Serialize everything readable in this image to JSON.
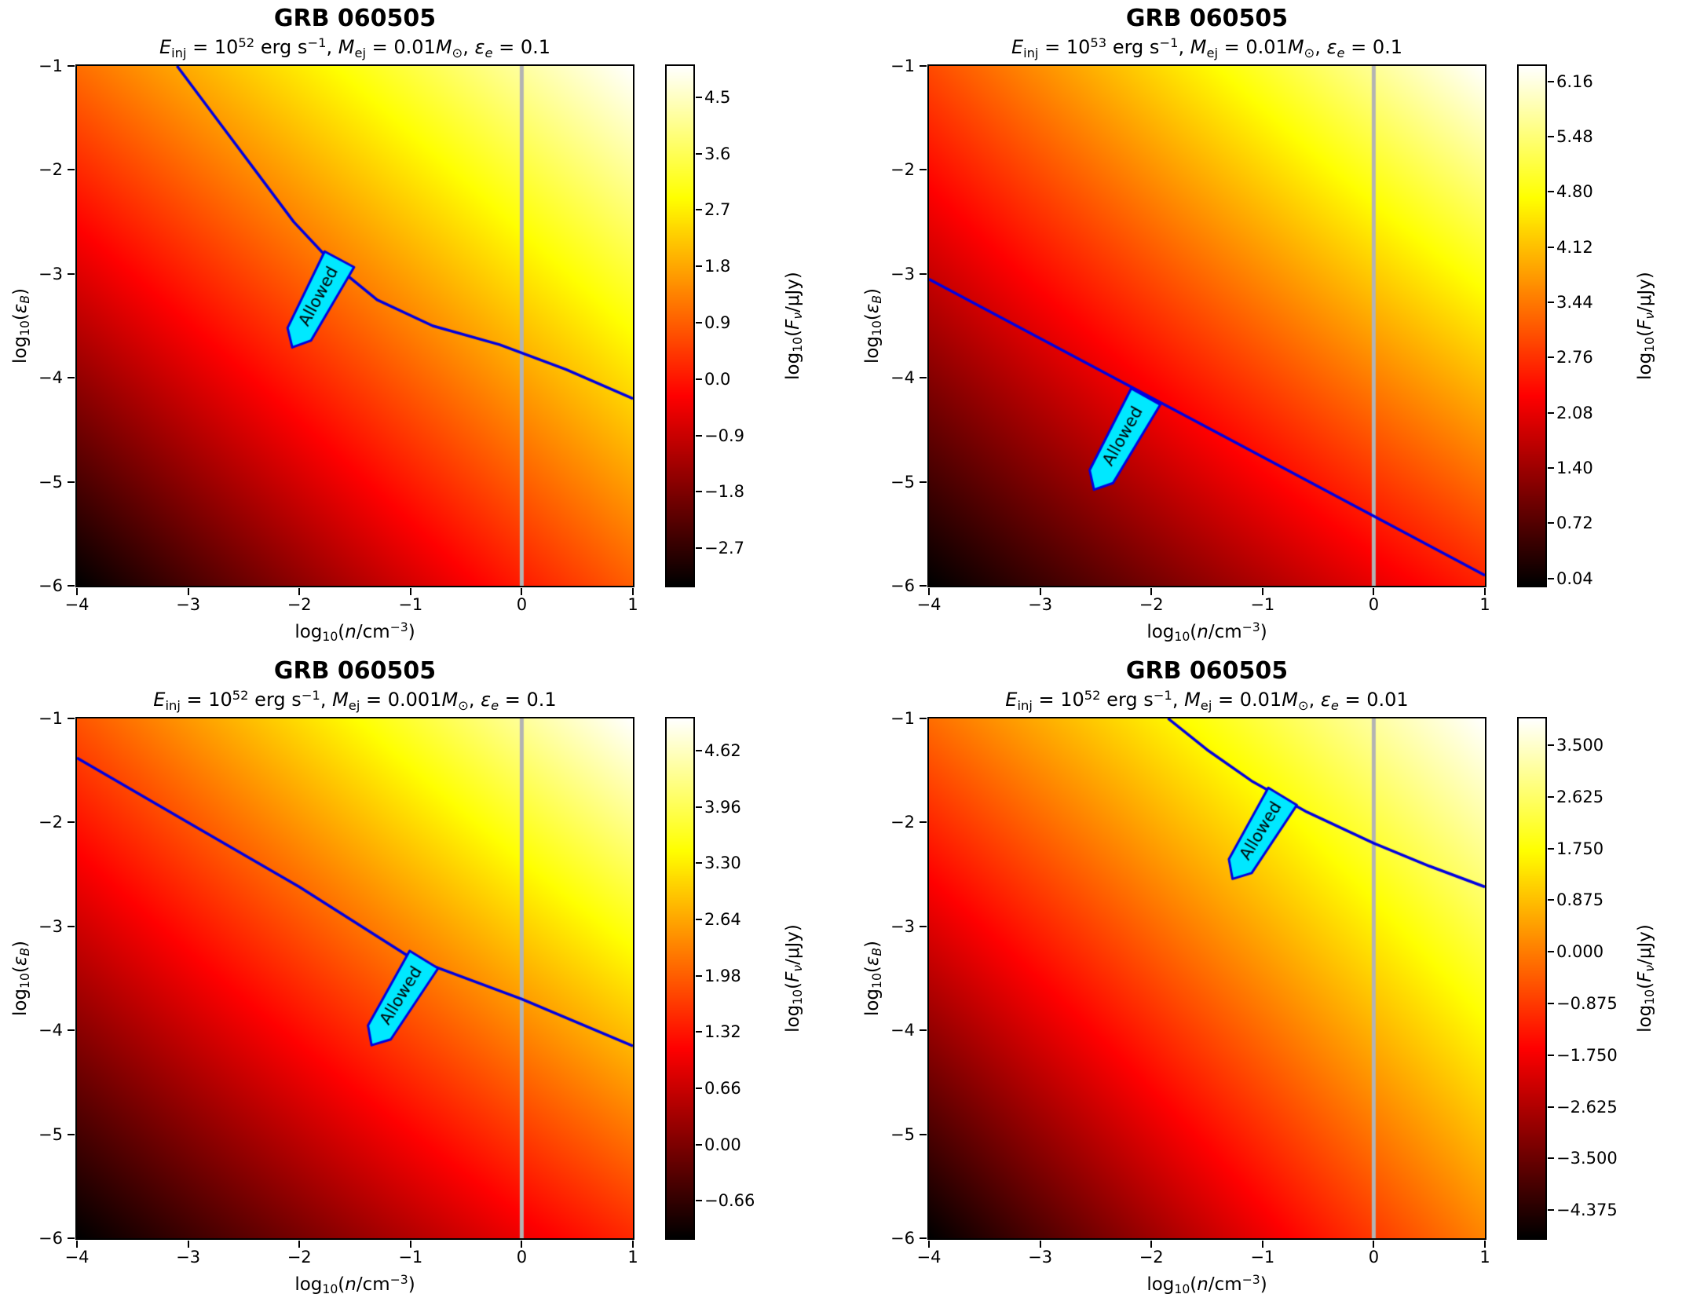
{
  "figure": {
    "background": "#ffffff",
    "rows": 2,
    "cols": 2
  },
  "rich": {
    "xlabel_segments": [
      {
        "t": "log"
      },
      {
        "t": "10",
        "sub": 1
      },
      {
        "t": "("
      },
      {
        "t": "n",
        "i": 1
      },
      {
        "t": "/cm"
      },
      {
        "t": "−3",
        "sup": 1
      },
      {
        "t": ")"
      }
    ],
    "ylabel_segments": [
      {
        "t": "log"
      },
      {
        "t": "10",
        "sub": 1
      },
      {
        "t": "("
      },
      {
        "t": "ε",
        "i": 1
      },
      {
        "t": "B",
        "sub": 1,
        "i": 1
      },
      {
        "t": ")"
      }
    ],
    "cbar_label_segments": [
      {
        "t": "log"
      },
      {
        "t": "10",
        "sub": 1
      },
      {
        "t": "("
      },
      {
        "t": "F",
        "i": 1
      },
      {
        "t": "ν",
        "sub": 1,
        "i": 1
      },
      {
        "t": "/μJy)"
      }
    ]
  },
  "chart_data": [
    {
      "type": "heatmap",
      "title": "GRB 060505",
      "subtitle": "Einj = 10⁵² erg s⁻¹, Mej = 0.01M⊙, εe = 0.1",
      "subtitle_segments": [
        {
          "t": "E",
          "i": 1
        },
        {
          "t": "inj",
          "sub": 1
        },
        {
          "t": " = 10"
        },
        {
          "t": "52",
          "sup": 1
        },
        {
          "t": " erg s"
        },
        {
          "t": "−1",
          "sup": 1
        },
        {
          "t": ", "
        },
        {
          "t": "M",
          "i": 1
        },
        {
          "t": "ej",
          "sub": 1
        },
        {
          "t": " = 0.01"
        },
        {
          "t": "M",
          "i": 1
        },
        {
          "t": "⊙",
          "sub": 1
        },
        {
          "t": ", "
        },
        {
          "t": "ε",
          "i": 1
        },
        {
          "t": "e",
          "sub": 1,
          "i": 1
        },
        {
          "t": " = 0.1"
        }
      ],
      "xlabel": "log10(n/cm⁻³)",
      "ylabel": "log10(εB)",
      "colorbar_label": "log10(Fν/μJy)",
      "xlim": [
        -4,
        1
      ],
      "ylim": [
        -6,
        -1
      ],
      "x_ticks": [
        -4,
        -3,
        -2,
        -1,
        0,
        1
      ],
      "x_tick_labels": [
        "−4",
        "−3",
        "−2",
        "−1",
        "0",
        "1"
      ],
      "y_ticks": [
        -1,
        -2,
        -3,
        -4,
        -5,
        -6
      ],
      "y_tick_labels": [
        "−1",
        "−2",
        "−3",
        "−4",
        "−5",
        "−6"
      ],
      "colormap": "hot",
      "vmin": -3.3,
      "vmax": 5.0,
      "corner_values": {
        "bl": -3.3,
        "br": 0.9,
        "tl": 1.1,
        "tr": 5.0
      },
      "colorbar_ticks": [
        {
          "value": 4.5,
          "label": "4.5"
        },
        {
          "value": 3.6,
          "label": "3.6"
        },
        {
          "value": 2.7,
          "label": "2.7"
        },
        {
          "value": 1.8,
          "label": "1.8"
        },
        {
          "value": 0.9,
          "label": "0.9"
        },
        {
          "value": 0.0,
          "label": "0.0"
        },
        {
          "value": -0.9,
          "label": "−0.9"
        },
        {
          "value": -1.8,
          "label": "−1.8"
        },
        {
          "value": -2.7,
          "label": "−2.7"
        }
      ],
      "vline_x": 0,
      "vline_color": "#b3b3b3",
      "contour": {
        "color": "#0000e0",
        "points": [
          [
            -3.1,
            -1.0
          ],
          [
            -2.75,
            -1.5
          ],
          [
            -2.4,
            -2.0
          ],
          [
            -2.05,
            -2.5
          ],
          [
            -1.7,
            -2.9
          ],
          [
            -1.3,
            -3.25
          ],
          [
            -0.8,
            -3.5
          ],
          [
            -0.2,
            -3.68
          ],
          [
            0.4,
            -3.92
          ],
          [
            1.0,
            -4.2
          ]
        ]
      },
      "allowed_region": {
        "label": "Allowed",
        "fill": "#00e8ff",
        "edge": "#0000e0",
        "top": [
          -1.64,
          -2.86
        ],
        "bottom": [
          -2.0,
          -3.58
        ],
        "half_width": 0.15
      }
    },
    {
      "type": "heatmap",
      "title": "GRB 060505",
      "subtitle": "Einj = 10⁵³ erg s⁻¹, Mej = 0.01M⊙, εe = 0.1",
      "subtitle_segments": [
        {
          "t": "E",
          "i": 1
        },
        {
          "t": "inj",
          "sub": 1
        },
        {
          "t": " = 10"
        },
        {
          "t": "53",
          "sup": 1
        },
        {
          "t": " erg s"
        },
        {
          "t": "−1",
          "sup": 1
        },
        {
          "t": ", "
        },
        {
          "t": "M",
          "i": 1
        },
        {
          "t": "ej",
          "sub": 1
        },
        {
          "t": " = 0.01"
        },
        {
          "t": "M",
          "i": 1
        },
        {
          "t": "⊙",
          "sub": 1
        },
        {
          "t": ", "
        },
        {
          "t": "ε",
          "i": 1
        },
        {
          "t": "e",
          "sub": 1,
          "i": 1
        },
        {
          "t": " = 0.1"
        }
      ],
      "xlabel": "log10(n/cm⁻³)",
      "ylabel": "log10(εB)",
      "colorbar_label": "log10(Fν/μJy)",
      "xlim": [
        -4,
        1
      ],
      "ylim": [
        -6,
        -1
      ],
      "x_ticks": [
        -4,
        -3,
        -2,
        -1,
        0,
        1
      ],
      "x_tick_labels": [
        "−4",
        "−3",
        "−2",
        "−1",
        "0",
        "1"
      ],
      "y_ticks": [
        -1,
        -2,
        -3,
        -4,
        -5,
        -6
      ],
      "y_tick_labels": [
        "−1",
        "−2",
        "−3",
        "−4",
        "−5",
        "−6"
      ],
      "colormap": "hot",
      "vmin": -0.05,
      "vmax": 6.35,
      "corner_values": {
        "bl": -0.05,
        "br": 2.6,
        "tl": 3.0,
        "tr": 6.35
      },
      "colorbar_ticks": [
        {
          "value": 6.16,
          "label": "6.16"
        },
        {
          "value": 5.48,
          "label": "5.48"
        },
        {
          "value": 4.8,
          "label": "4.80"
        },
        {
          "value": 4.12,
          "label": "4.12"
        },
        {
          "value": 3.44,
          "label": "3.44"
        },
        {
          "value": 2.76,
          "label": "2.76"
        },
        {
          "value": 2.08,
          "label": "2.08"
        },
        {
          "value": 1.4,
          "label": "1.40"
        },
        {
          "value": 0.72,
          "label": "0.72"
        },
        {
          "value": 0.04,
          "label": "0.04"
        }
      ],
      "vline_x": 0,
      "vline_color": "#b3b3b3",
      "contour": {
        "color": "#0000e0",
        "points": [
          [
            -4.0,
            -3.05
          ],
          [
            1.0,
            -5.9
          ]
        ]
      },
      "allowed_region": {
        "label": "Allowed",
        "fill": "#00e8ff",
        "edge": "#0000e0",
        "top": [
          -2.05,
          -4.18
        ],
        "bottom": [
          -2.45,
          -4.95
        ],
        "half_width": 0.15
      }
    },
    {
      "type": "heatmap",
      "title": "GRB 060505",
      "subtitle": "Einj = 10⁵² erg s⁻¹, Mej = 0.001M⊙, εe = 0.1",
      "subtitle_segments": [
        {
          "t": "E",
          "i": 1
        },
        {
          "t": "inj",
          "sub": 1
        },
        {
          "t": " = 10"
        },
        {
          "t": "52",
          "sup": 1
        },
        {
          "t": " erg s"
        },
        {
          "t": "−1",
          "sup": 1
        },
        {
          "t": ", "
        },
        {
          "t": "M",
          "i": 1
        },
        {
          "t": "ej",
          "sub": 1
        },
        {
          "t": " = 0.001"
        },
        {
          "t": "M",
          "i": 1
        },
        {
          "t": "⊙",
          "sub": 1
        },
        {
          "t": ", "
        },
        {
          "t": "ε",
          "i": 1
        },
        {
          "t": "e",
          "sub": 1,
          "i": 1
        },
        {
          "t": " = 0.1"
        }
      ],
      "xlabel": "log10(n/cm⁻³)",
      "ylabel": "log10(εB)",
      "colorbar_label": "log10(Fν/μJy)",
      "xlim": [
        -4,
        1
      ],
      "ylim": [
        -6,
        -1
      ],
      "x_ticks": [
        -4,
        -3,
        -2,
        -1,
        0,
        1
      ],
      "x_tick_labels": [
        "−4",
        "−3",
        "−2",
        "−1",
        "0",
        "1"
      ],
      "y_ticks": [
        -1,
        -2,
        -3,
        -4,
        -5,
        -6
      ],
      "y_tick_labels": [
        "−1",
        "−2",
        "−3",
        "−4",
        "−5",
        "−6"
      ],
      "colormap": "hot",
      "vmin": -1.1,
      "vmax": 5.0,
      "corner_values": {
        "bl": -1.1,
        "br": 1.5,
        "tl": 1.9,
        "tr": 5.0
      },
      "colorbar_ticks": [
        {
          "value": 4.62,
          "label": "4.62"
        },
        {
          "value": 3.96,
          "label": "3.96"
        },
        {
          "value": 3.3,
          "label": "3.30"
        },
        {
          "value": 2.64,
          "label": "2.64"
        },
        {
          "value": 1.98,
          "label": "1.98"
        },
        {
          "value": 1.32,
          "label": "1.32"
        },
        {
          "value": 0.66,
          "label": "0.66"
        },
        {
          "value": 0.0,
          "label": "0.00"
        },
        {
          "value": -0.66,
          "label": "−0.66"
        }
      ],
      "vline_x": 0,
      "vline_color": "#b3b3b3",
      "contour": {
        "color": "#0000e0",
        "points": [
          [
            -4.0,
            -1.38
          ],
          [
            -3.0,
            -2.0
          ],
          [
            -2.0,
            -2.62
          ],
          [
            -1.0,
            -3.3
          ],
          [
            0.0,
            -3.7
          ],
          [
            1.0,
            -4.15
          ]
        ]
      },
      "allowed_region": {
        "label": "Allowed",
        "fill": "#00e8ff",
        "edge": "#0000e0",
        "top": [
          -0.88,
          -3.32
        ],
        "bottom": [
          -1.28,
          -4.02
        ],
        "half_width": 0.15
      }
    },
    {
      "type": "heatmap",
      "title": "GRB 060505",
      "subtitle": "Einj = 10⁵² erg s⁻¹, Mej = 0.01M⊙, εe = 0.01",
      "subtitle_segments": [
        {
          "t": "E",
          "i": 1
        },
        {
          "t": "inj",
          "sub": 1
        },
        {
          "t": " = 10"
        },
        {
          "t": "52",
          "sup": 1
        },
        {
          "t": " erg s"
        },
        {
          "t": "−1",
          "sup": 1
        },
        {
          "t": ", "
        },
        {
          "t": "M",
          "i": 1
        },
        {
          "t": "ej",
          "sub": 1
        },
        {
          "t": " = 0.01"
        },
        {
          "t": "M",
          "i": 1
        },
        {
          "t": "⊙",
          "sub": 1
        },
        {
          "t": ", "
        },
        {
          "t": "ε",
          "i": 1
        },
        {
          "t": "e",
          "sub": 1,
          "i": 1
        },
        {
          "t": " = 0.01"
        }
      ],
      "xlabel": "log10(n/cm⁻³)",
      "ylabel": "log10(εB)",
      "colorbar_label": "log10(Fν/μJy)",
      "xlim": [
        -4,
        1
      ],
      "ylim": [
        -6,
        -1
      ],
      "x_ticks": [
        -4,
        -3,
        -2,
        -1,
        0,
        1
      ],
      "x_tick_labels": [
        "−4",
        "−3",
        "−2",
        "−1",
        "0",
        "1"
      ],
      "y_ticks": [
        -1,
        -2,
        -3,
        -4,
        -5,
        -6
      ],
      "y_tick_labels": [
        "−1",
        "−2",
        "−3",
        "−4",
        "−5",
        "−6"
      ],
      "colormap": "hot",
      "vmin": -4.85,
      "vmax": 3.95,
      "corner_values": {
        "bl": -4.85,
        "br": 0.1,
        "tl": -0.2,
        "tr": 3.95
      },
      "colorbar_ticks": [
        {
          "value": 3.5,
          "label": "3.500"
        },
        {
          "value": 2.625,
          "label": "2.625"
        },
        {
          "value": 1.75,
          "label": "1.750"
        },
        {
          "value": 0.875,
          "label": "0.875"
        },
        {
          "value": 0.0,
          "label": "0.000"
        },
        {
          "value": -0.875,
          "label": "−0.875"
        },
        {
          "value": -1.75,
          "label": "−1.750"
        },
        {
          "value": -2.625,
          "label": "−2.625"
        },
        {
          "value": -3.5,
          "label": "−3.500"
        },
        {
          "value": -4.375,
          "label": "−4.375"
        }
      ],
      "vline_x": 0,
      "vline_color": "#b3b3b3",
      "contour": {
        "color": "#0000e0",
        "points": [
          [
            -1.85,
            -1.0
          ],
          [
            -1.5,
            -1.3
          ],
          [
            -1.1,
            -1.6
          ],
          [
            -0.6,
            -1.9
          ],
          [
            0.0,
            -2.2
          ],
          [
            0.5,
            -2.42
          ],
          [
            1.0,
            -2.62
          ]
        ]
      },
      "allowed_region": {
        "label": "Allowed",
        "fill": "#00e8ff",
        "edge": "#0000e0",
        "top": [
          -0.82,
          -1.75
        ],
        "bottom": [
          -1.2,
          -2.42
        ],
        "half_width": 0.15
      }
    }
  ]
}
